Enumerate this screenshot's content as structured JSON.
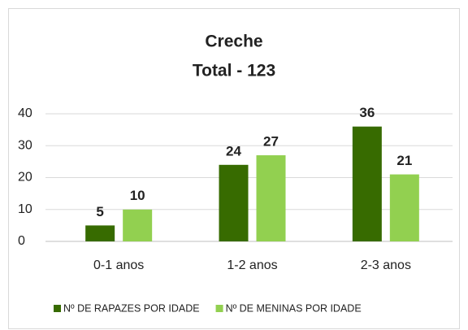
{
  "chart_data": {
    "type": "bar",
    "title": "Creche",
    "subtitle": "Total - 123",
    "categories": [
      "0-1 anos",
      "1-2 anos",
      "2-3 anos"
    ],
    "series": [
      {
        "name": "Nº DE RAPAZES POR IDADE",
        "color": "#376b00",
        "values": [
          5,
          24,
          36
        ]
      },
      {
        "name": "Nº DE MENINAS POR IDADE",
        "color": "#92d050",
        "values": [
          10,
          27,
          21
        ]
      }
    ],
    "ylim": [
      0,
      40
    ],
    "yticks": [
      0,
      10,
      20,
      30,
      40
    ],
    "grid": true,
    "legend": "bottom"
  }
}
